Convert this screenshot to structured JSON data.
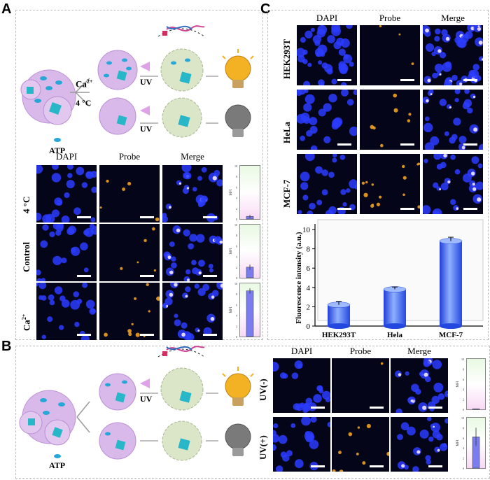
{
  "panels": {
    "a": "A",
    "b": "B",
    "c": "C"
  },
  "panel_a": {
    "schematic": {
      "ca_label": "Ca",
      "ca_sup": "2+",
      "temp_label": "4 °C",
      "uv_top": "UV",
      "uv_bottom": "UV",
      "atp_label": "ATP"
    },
    "col_headers": [
      "DAPI",
      "Probe",
      "Merge"
    ],
    "rows": [
      {
        "label": "4 °C",
        "mfi": 0.5,
        "err": 0.3
      },
      {
        "label": "Control",
        "mfi": 2.0,
        "err": 0.5
      },
      {
        "label": "Ca",
        "label_sup": "2+",
        "mfi": 8.6,
        "err": 0.5
      }
    ],
    "mfi_axis": {
      "label": "MFI",
      "ticks": [
        "10",
        "8",
        "6",
        "4",
        "2",
        "0"
      ],
      "ylim": [
        0,
        10
      ]
    }
  },
  "panel_b": {
    "schematic": {
      "uv_label": "UV",
      "atp_label": "ATP"
    },
    "col_headers": [
      "DAPI",
      "Probe",
      "Merge"
    ],
    "rows": [
      {
        "label": "UV(-)",
        "mfi": 0.1,
        "err": 0.05
      },
      {
        "label": "UV(+)",
        "mfi": 6.2,
        "err": 1.8
      }
    ],
    "mfi_axis": {
      "label": "MFI",
      "ticks": [
        "10",
        "8",
        "6",
        "4",
        "2",
        "0"
      ],
      "ylim": [
        0,
        10
      ]
    }
  },
  "panel_c": {
    "col_headers": [
      "DAPI",
      "Probe",
      "Merge"
    ],
    "row_labels": [
      "HEK293T",
      "HeLa",
      "MCF-7"
    ]
  },
  "chart_data": {
    "type": "bar",
    "categories": [
      "HEK293T",
      "Hela",
      "MCF-7"
    ],
    "values": [
      2.2,
      3.8,
      8.8
    ],
    "errors": [
      0.35,
      0.25,
      0.4
    ],
    "ylabel": "Fluorescence intensity (a.u.)",
    "ylim": [
      0,
      10
    ],
    "yticks": [
      0,
      2,
      4,
      6,
      8,
      10
    ],
    "grid": false
  },
  "colors": {
    "dapi": "#2b3cff",
    "probe": "#f0a020",
    "bar": "#3c6cf0",
    "bulb_on": "#f2b224",
    "bulb_off": "#7a7a7a",
    "cell": "#d9b9ea"
  }
}
